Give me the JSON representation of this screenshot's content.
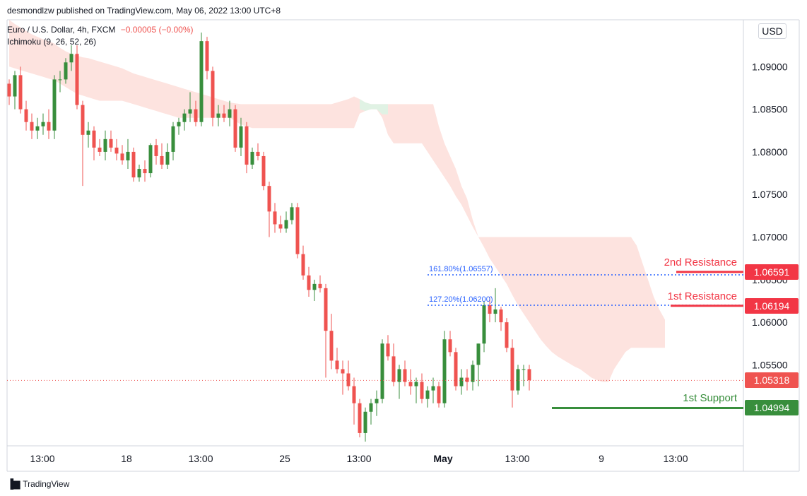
{
  "header": {
    "publish_info": "desmondlzw published on TradingView.com, May 06, 2022 13:00 UTC+8",
    "symbol_line": "Euro / U.S. Dollar, 4h, FXCM",
    "change": "−0.00005 (−0.00%)",
    "indicator": "Ichimoku (9, 26, 52, 26)"
  },
  "currency_button": "USD",
  "branding": "TradingView",
  "colors": {
    "up": "#26a69a",
    "up_body": "#388e3c",
    "down": "#ef5350",
    "cloud_bear": "#fde3df",
    "cloud_bull": "#e0f2e4",
    "resistance": "#f23645",
    "support": "#388e3c",
    "fib": "#2962ff",
    "grid_text": "#131722"
  },
  "chart_data": {
    "type": "candlestick",
    "timeframe": "4h",
    "y_axis": {
      "ticks": [
        "1.09000",
        "1.08500",
        "1.08000",
        "1.07500",
        "1.07000",
        "1.06500",
        "1.06000",
        "1.05500"
      ],
      "tick_values": [
        1.09,
        1.085,
        1.08,
        1.075,
        1.07,
        1.065,
        1.06,
        1.055
      ],
      "ylim": [
        1.0455,
        1.0955
      ]
    },
    "x_axis": {
      "ticks": [
        "13:00",
        "18",
        "13:00",
        "25",
        "13:00",
        "May",
        "13:00",
        "9",
        "13:00"
      ],
      "bold_index": 5
    },
    "candles": [
      [
        1.088,
        1.0885,
        1.0855,
        1.0865
      ],
      [
        1.0865,
        1.0895,
        1.085,
        1.089
      ],
      [
        1.089,
        1.09,
        1.0845,
        1.085
      ],
      [
        1.085,
        1.086,
        1.0825,
        1.0835
      ],
      [
        1.0835,
        1.0845,
        1.0815,
        1.0825
      ],
      [
        1.0825,
        1.084,
        1.0815,
        1.083
      ],
      [
        1.083,
        1.0845,
        1.082,
        1.0835
      ],
      [
        1.0835,
        1.085,
        1.0815,
        1.0825
      ],
      [
        1.0825,
        1.089,
        1.0815,
        1.0885
      ],
      [
        1.0885,
        1.0895,
        1.087,
        1.0885
      ],
      [
        1.0885,
        1.091,
        1.088,
        1.0905
      ],
      [
        1.0905,
        1.0925,
        1.0895,
        1.0915
      ],
      [
        1.0915,
        1.0925,
        1.085,
        1.0855
      ],
      [
        1.0855,
        1.086,
        1.076,
        1.082
      ],
      [
        1.082,
        1.0835,
        1.0805,
        1.0825
      ],
      [
        1.0825,
        1.083,
        1.079,
        1.0805
      ],
      [
        1.0805,
        1.0815,
        1.0795,
        1.08
      ],
      [
        1.08,
        1.0825,
        1.079,
        1.0815
      ],
      [
        1.0815,
        1.0825,
        1.08,
        1.0805
      ],
      [
        1.0805,
        1.0815,
        1.079,
        1.0798
      ],
      [
        1.0798,
        1.0808,
        1.0785,
        1.079
      ],
      [
        1.079,
        1.0815,
        1.078,
        1.08
      ],
      [
        1.08,
        1.0805,
        1.0765,
        1.077
      ],
      [
        1.077,
        1.0785,
        1.0765,
        1.078
      ],
      [
        1.078,
        1.079,
        1.0765,
        1.0775
      ],
      [
        1.0775,
        1.081,
        1.077,
        1.0808
      ],
      [
        1.0808,
        1.0815,
        1.0785,
        1.0795
      ],
      [
        1.0795,
        1.081,
        1.078,
        1.0785
      ],
      [
        1.0785,
        1.081,
        1.078,
        1.08
      ],
      [
        1.08,
        1.0835,
        1.079,
        1.083
      ],
      [
        1.083,
        1.084,
        1.082,
        1.0835
      ],
      [
        1.0835,
        1.085,
        1.0825,
        1.0845
      ],
      [
        1.0845,
        1.087,
        1.0835,
        1.085
      ],
      [
        1.085,
        1.086,
        1.083,
        1.0835
      ],
      [
        1.0835,
        1.094,
        1.083,
        1.093
      ],
      [
        1.093,
        1.0935,
        1.0885,
        1.0895
      ],
      [
        1.0895,
        1.09,
        1.083,
        1.084
      ],
      [
        1.084,
        1.0855,
        1.083,
        1.0845
      ],
      [
        1.0845,
        1.0855,
        1.0835,
        1.084
      ],
      [
        1.084,
        1.086,
        1.083,
        1.085
      ],
      [
        1.085,
        1.0855,
        1.08,
        1.0805
      ],
      [
        1.0805,
        1.084,
        1.0795,
        1.083
      ],
      [
        1.083,
        1.0835,
        1.0775,
        1.0785
      ],
      [
        1.0785,
        1.0805,
        1.078,
        1.08
      ],
      [
        1.08,
        1.081,
        1.079,
        1.0795
      ],
      [
        1.0795,
        1.08,
        1.0755,
        1.076
      ],
      [
        1.076,
        1.0765,
        1.07,
        1.073
      ],
      [
        1.073,
        1.074,
        1.0705,
        1.0715
      ],
      [
        1.0715,
        1.0725,
        1.0705,
        1.071
      ],
      [
        1.071,
        1.073,
        1.0705,
        1.072
      ],
      [
        1.072,
        1.074,
        1.0715,
        1.0735
      ],
      [
        1.0735,
        1.074,
        1.0675,
        1.068
      ],
      [
        1.068,
        1.069,
        1.065,
        1.0655
      ],
      [
        1.0655,
        1.0665,
        1.063,
        1.0638
      ],
      [
        1.0638,
        1.065,
        1.0625,
        1.0645
      ],
      [
        1.0645,
        1.0655,
        1.0635,
        1.064
      ],
      [
        1.064,
        1.0645,
        1.0535,
        1.059
      ],
      [
        1.059,
        1.061,
        1.0545,
        1.0555
      ],
      [
        1.0555,
        1.057,
        1.054,
        1.0545
      ],
      [
        1.0545,
        1.0555,
        1.0515,
        1.054
      ],
      [
        1.054,
        1.0555,
        1.052,
        1.0525
      ],
      [
        1.0525,
        1.0535,
        1.048,
        1.0505
      ],
      [
        1.0505,
        1.051,
        1.0465,
        1.047
      ],
      [
        1.047,
        1.05,
        1.046,
        1.0495
      ],
      [
        1.0495,
        1.051,
        1.048,
        1.0505
      ],
      [
        1.0505,
        1.052,
        1.049,
        1.051
      ],
      [
        1.051,
        1.058,
        1.0505,
        1.0575
      ],
      [
        1.0575,
        1.0585,
        1.0555,
        1.056
      ],
      [
        1.056,
        1.0575,
        1.0525,
        1.053
      ],
      [
        1.053,
        1.055,
        1.051,
        1.0545
      ],
      [
        1.0545,
        1.0555,
        1.0525,
        1.053
      ],
      [
        1.053,
        1.0545,
        1.0515,
        1.0525
      ],
      [
        1.0525,
        1.0535,
        1.0505,
        1.053
      ],
      [
        1.053,
        1.054,
        1.0505,
        1.051
      ],
      [
        1.051,
        1.0525,
        1.05,
        1.052
      ],
      [
        1.052,
        1.0535,
        1.0505,
        1.0525
      ],
      [
        1.0525,
        1.053,
        1.05,
        1.0505
      ],
      [
        1.0505,
        1.059,
        1.05,
        1.058
      ],
      [
        1.058,
        1.059,
        1.056,
        1.0565
      ],
      [
        1.0565,
        1.057,
        1.052,
        1.0525
      ],
      [
        1.0525,
        1.0545,
        1.0515,
        1.0535
      ],
      [
        1.0535,
        1.0545,
        1.052,
        1.053
      ],
      [
        1.053,
        1.0555,
        1.052,
        1.055
      ],
      [
        1.055,
        1.0575,
        1.0525,
        1.0575
      ],
      [
        1.0575,
        1.0625,
        1.0565,
        1.062
      ],
      [
        1.062,
        1.063,
        1.06,
        1.061
      ],
      [
        1.061,
        1.064,
        1.06,
        1.0615
      ],
      [
        1.0615,
        1.0618,
        1.059,
        1.06
      ],
      [
        1.06,
        1.0605,
        1.0565,
        1.057
      ],
      [
        1.057,
        1.058,
        1.05,
        1.052
      ],
      [
        1.052,
        1.055,
        1.0515,
        1.0545
      ],
      [
        1.0545,
        1.055,
        1.0525,
        1.0545
      ],
      [
        1.0545,
        1.055,
        1.052,
        1.0532
      ]
    ],
    "cloud": {
      "start_index": 0,
      "upper": [
        1.0955,
        1.095,
        1.0946,
        1.0942,
        1.0938,
        1.0935,
        1.0932,
        1.093,
        1.0927,
        1.0922,
        1.0918,
        1.0915,
        1.0913,
        1.0911,
        1.091,
        1.0908,
        1.0906,
        1.0904,
        1.0902,
        1.09,
        1.0898,
        1.0895,
        1.0892,
        1.089,
        1.0888,
        1.0886,
        1.0884,
        1.0882,
        1.088,
        1.0878,
        1.0876,
        1.0874,
        1.0872,
        1.087,
        1.0868,
        1.0866,
        1.0864,
        1.0862,
        1.086,
        1.0858,
        1.0857,
        1.0856,
        1.0856,
        1.0856,
        1.0856,
        1.0856,
        1.0856,
        1.0856,
        1.0856,
        1.0856,
        1.0856,
        1.0856,
        1.0856,
        1.0856,
        1.0856,
        1.0856,
        1.0856,
        1.0856,
        1.0858,
        1.086,
        1.0862,
        1.0865,
        1.0862,
        1.0858,
        1.0856,
        1.0856,
        1.0856,
        1.0856,
        1.0856,
        1.0856,
        1.0856,
        1.0856,
        1.0856,
        1.0856,
        1.0856,
        1.0856,
        1.083,
        1.081,
        1.0795,
        1.078,
        1.076,
        1.0745,
        1.072,
        1.07,
        1.07,
        1.07,
        1.07,
        1.07,
        1.07,
        1.07,
        1.07,
        1.07,
        1.07,
        1.07,
        1.07,
        1.07,
        1.07,
        1.07,
        1.07,
        1.07,
        1.07,
        1.07,
        1.07,
        1.07,
        1.07,
        1.07,
        1.07,
        1.07,
        1.07,
        1.07,
        1.07,
        1.069,
        1.067,
        1.065,
        1.063,
        1.0615,
        1.0603
      ],
      "lower": [
        1.09,
        1.0898,
        1.0896,
        1.0894,
        1.0892,
        1.089,
        1.0888,
        1.0886,
        1.0884,
        1.088,
        1.0876,
        1.0872,
        1.0868,
        1.0866,
        1.0864,
        1.0862,
        1.086,
        1.086,
        1.086,
        1.086,
        1.086,
        1.0858,
        1.0856,
        1.0854,
        1.0852,
        1.085,
        1.0848,
        1.0846,
        1.0844,
        1.0842,
        1.084,
        1.084,
        1.084,
        1.084,
        1.084,
        1.084,
        1.084,
        1.084,
        1.084,
        1.084,
        1.0836,
        1.0832,
        1.083,
        1.0828,
        1.0828,
        1.0828,
        1.0828,
        1.0828,
        1.0828,
        1.0828,
        1.0828,
        1.0828,
        1.0828,
        1.0828,
        1.0828,
        1.0828,
        1.0828,
        1.0828,
        1.0828,
        1.0828,
        1.0828,
        1.0828,
        1.0845,
        1.0848,
        1.085,
        1.085,
        1.084,
        1.082,
        1.081,
        1.081,
        1.081,
        1.081,
        1.081,
        1.081,
        1.08,
        1.079,
        1.078,
        1.077,
        1.076,
        1.0748,
        1.0738,
        1.0725,
        1.0712,
        1.07,
        1.0688,
        1.0675,
        1.0665,
        1.0655,
        1.0645,
        1.0632,
        1.062,
        1.061,
        1.06,
        1.059,
        1.058,
        1.0572,
        1.0565,
        1.056,
        1.0556,
        1.0552,
        1.0548,
        1.0545,
        1.054,
        1.0535,
        1.0532,
        1.053,
        1.053,
        1.0545,
        1.0555,
        1.0565,
        1.057,
        1.057,
        1.057,
        1.057,
        1.057,
        1.057,
        1.057
      ]
    },
    "current_price": {
      "value": 1.05318,
      "label": "1.05318"
    },
    "levels": [
      {
        "name": "2nd Resistance",
        "value": 1.06591,
        "label": "1.06591",
        "kind": "resistance",
        "start_index": 118
      },
      {
        "name": "1st Resistance",
        "value": 1.06194,
        "label": "1.06194",
        "kind": "resistance",
        "start_index": 117
      },
      {
        "name": "1st Support",
        "value": 1.04994,
        "label": "1.04994",
        "kind": "support",
        "start_index": 96
      }
    ],
    "fib_levels": [
      {
        "label": "161.80%(1.06557)",
        "value": 1.06557,
        "start_index": 74
      },
      {
        "label": "127.20%(1.06200)",
        "value": 1.062,
        "start_index": 74
      }
    ]
  }
}
